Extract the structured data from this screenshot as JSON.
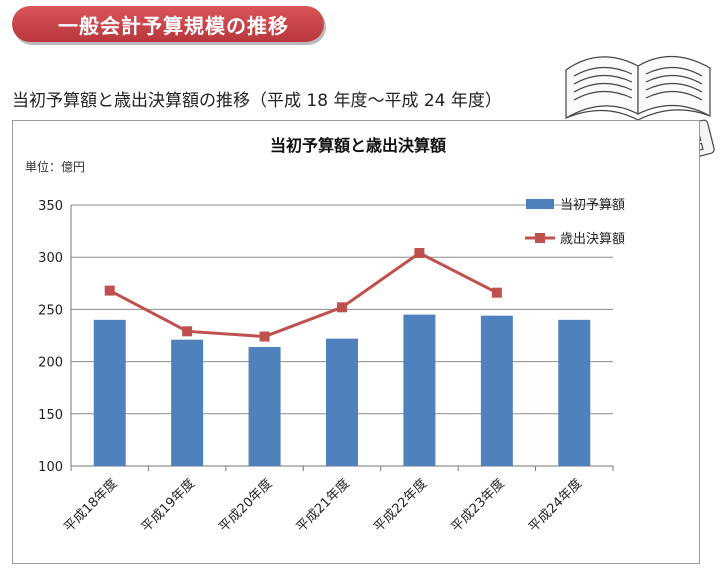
{
  "banner": {
    "title": "一般会計予算規模の推移"
  },
  "subtitle": "当初予算額と歳出決算額の推移（平成 18 年度～平成 24 年度）",
  "icons": [
    "open-book-icon",
    "calculator-icon"
  ],
  "colors": {
    "bar": "#4f81bd",
    "line": "#c0504d",
    "banner": "#c9464b"
  },
  "chart_data": {
    "type": "bar",
    "title": "当初予算額と歳出決算額",
    "unit_label": "単位：億円",
    "categories": [
      "平成18年度",
      "平成19年度",
      "平成20年度",
      "平成21年度",
      "平成22年度",
      "平成23年度",
      "平成24年度"
    ],
    "ylim": [
      100,
      350
    ],
    "yticks": [
      100,
      150,
      200,
      250,
      300,
      350
    ],
    "grid": true,
    "legend_position": "top-right",
    "series": [
      {
        "name": "当初予算額",
        "type": "bar",
        "values": [
          240,
          221,
          214,
          222,
          245,
          244,
          240
        ]
      },
      {
        "name": "歳出決算額",
        "type": "line",
        "values": [
          268,
          229,
          224,
          252,
          304,
          266,
          null
        ]
      }
    ]
  }
}
